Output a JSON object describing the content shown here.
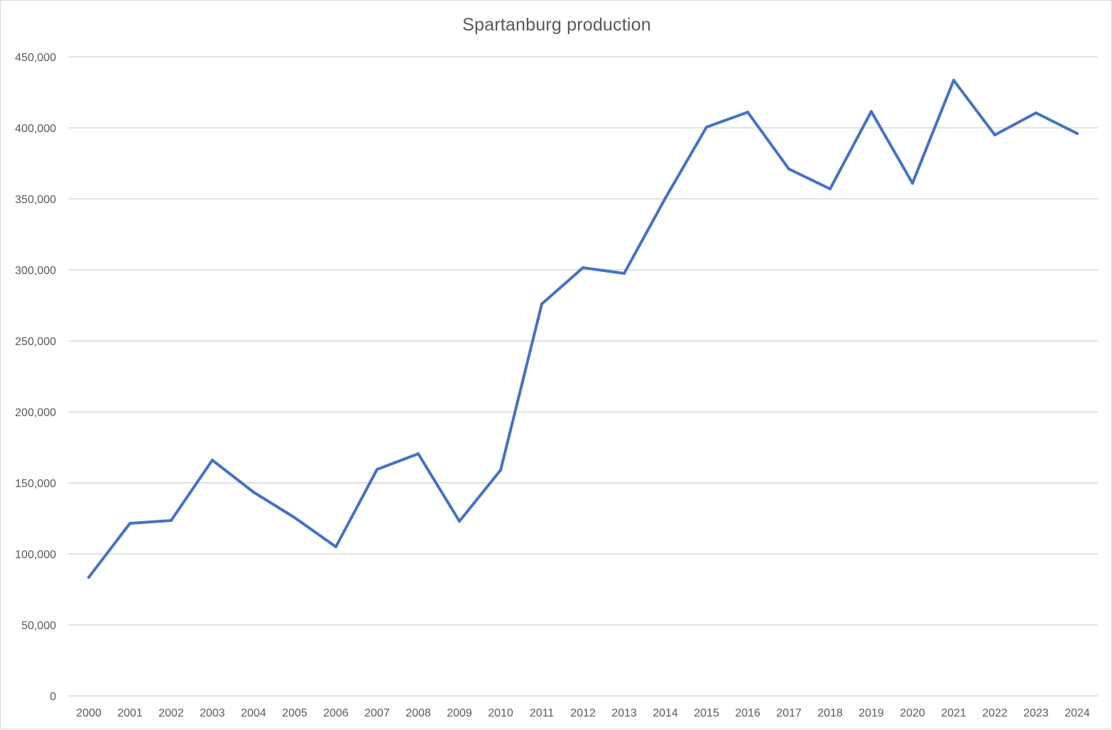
{
  "chart_data": {
    "type": "line",
    "title": "Spartanburg production",
    "xlabel": "",
    "ylabel": "",
    "categories": [
      "2000",
      "2001",
      "2002",
      "2003",
      "2004",
      "2005",
      "2006",
      "2007",
      "2008",
      "2009",
      "2010",
      "2011",
      "2012",
      "2013",
      "2014",
      "2015",
      "2016",
      "2017",
      "2018",
      "2019",
      "2020",
      "2021",
      "2022",
      "2023",
      "2024"
    ],
    "series": [
      {
        "values": [
          83500,
          121500,
          123500,
          166000,
          143500,
          125500,
          105000,
          159500,
          170500,
          123000,
          159000,
          276000,
          301500,
          297500,
          350500,
          400500,
          411000,
          371000,
          357000,
          411500,
          361000,
          433500,
          395000,
          410500,
          396000
        ]
      }
    ],
    "y_ticks": [
      "0",
      "50,000",
      "100,000",
      "150,000",
      "200,000",
      "250,000",
      "300,000",
      "350,000",
      "400,000",
      "450,000"
    ],
    "ylim": [
      0,
      450000
    ],
    "grid": true,
    "legend": "none",
    "colors": {
      "line": "#4472C4",
      "grid": "#d9d9d9",
      "text": "#595959"
    }
  }
}
